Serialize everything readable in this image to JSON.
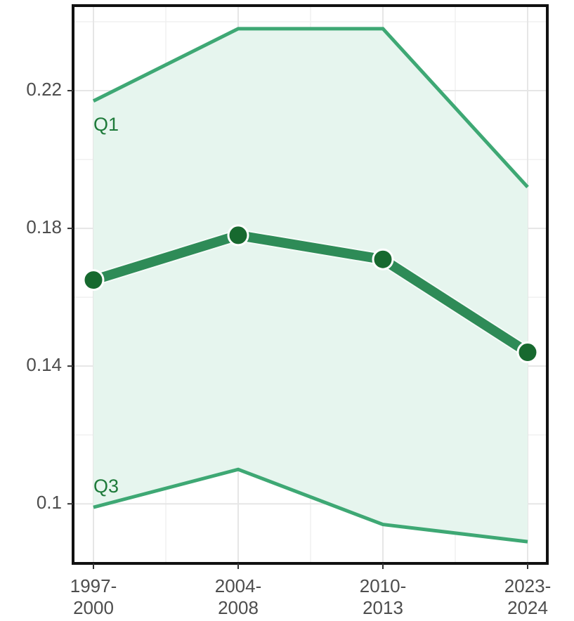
{
  "chart_data": {
    "type": "line",
    "categories": [
      "1997-\n2000",
      "2004-\n2008",
      "2010-\n2013",
      "2023-\n2024"
    ],
    "series": [
      {
        "name": "Q1",
        "color": "#3ea874",
        "values": [
          0.217,
          0.238,
          0.238,
          0.192
        ]
      },
      {
        "color": "#2e8b57",
        "values": [
          0.165,
          0.178,
          0.171,
          0.144
        ]
      },
      {
        "name": "Q3",
        "color": "#3ea874",
        "values": [
          0.099,
          0.11,
          0.094,
          0.089
        ]
      }
    ],
    "band_color": "#e6f5ee",
    "point_color": "#17692f",
    "ylim": [
      0.0827,
      0.2447
    ],
    "yticks": [
      0.1,
      0.14,
      0.18,
      0.22
    ],
    "grid": true
  }
}
